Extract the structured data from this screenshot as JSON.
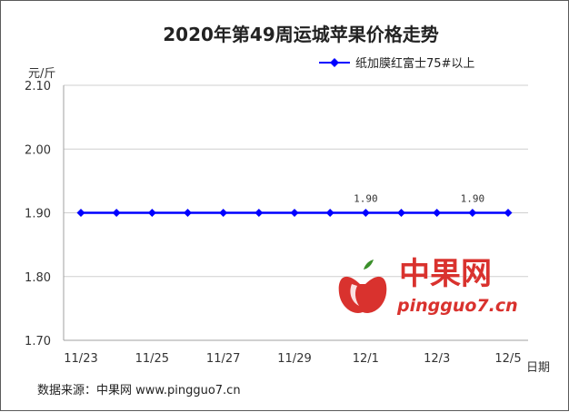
{
  "chart_data": {
    "type": "line",
    "title": "2020年第49周运城苹果价格走势",
    "ylabel": "元/斤",
    "xlabel": "日期",
    "categories": [
      "11/23",
      "11/24",
      "11/25",
      "11/26",
      "11/27",
      "11/28",
      "11/29",
      "11/30",
      "12/1",
      "12/2",
      "12/3",
      "12/4",
      "12/5"
    ],
    "x_tick_labels": [
      "11/23",
      "11/25",
      "11/27",
      "11/29",
      "12/1",
      "12/3",
      "12/5"
    ],
    "y_ticks": [
      "1.70",
      "1.80",
      "1.90",
      "2.00",
      "2.10"
    ],
    "ylim": [
      1.7,
      2.1
    ],
    "grid": true,
    "legend_position": "top-right",
    "series": [
      {
        "name": "纸加膜红富士75#以上",
        "color": "#0000ff",
        "values": [
          1.9,
          1.9,
          1.9,
          1.9,
          1.9,
          1.9,
          1.9,
          1.9,
          1.9,
          1.9,
          1.9,
          1.9,
          1.9
        ]
      }
    ],
    "data_labels": [
      {
        "index": 8,
        "text": "1.90"
      },
      {
        "index": 11,
        "text": "1.90"
      }
    ]
  },
  "source": "数据来源：中果网 www.pingguo7.cn",
  "watermark": {
    "name": "中果网",
    "url": "pingguo7.cn",
    "color": "#d9322e"
  }
}
